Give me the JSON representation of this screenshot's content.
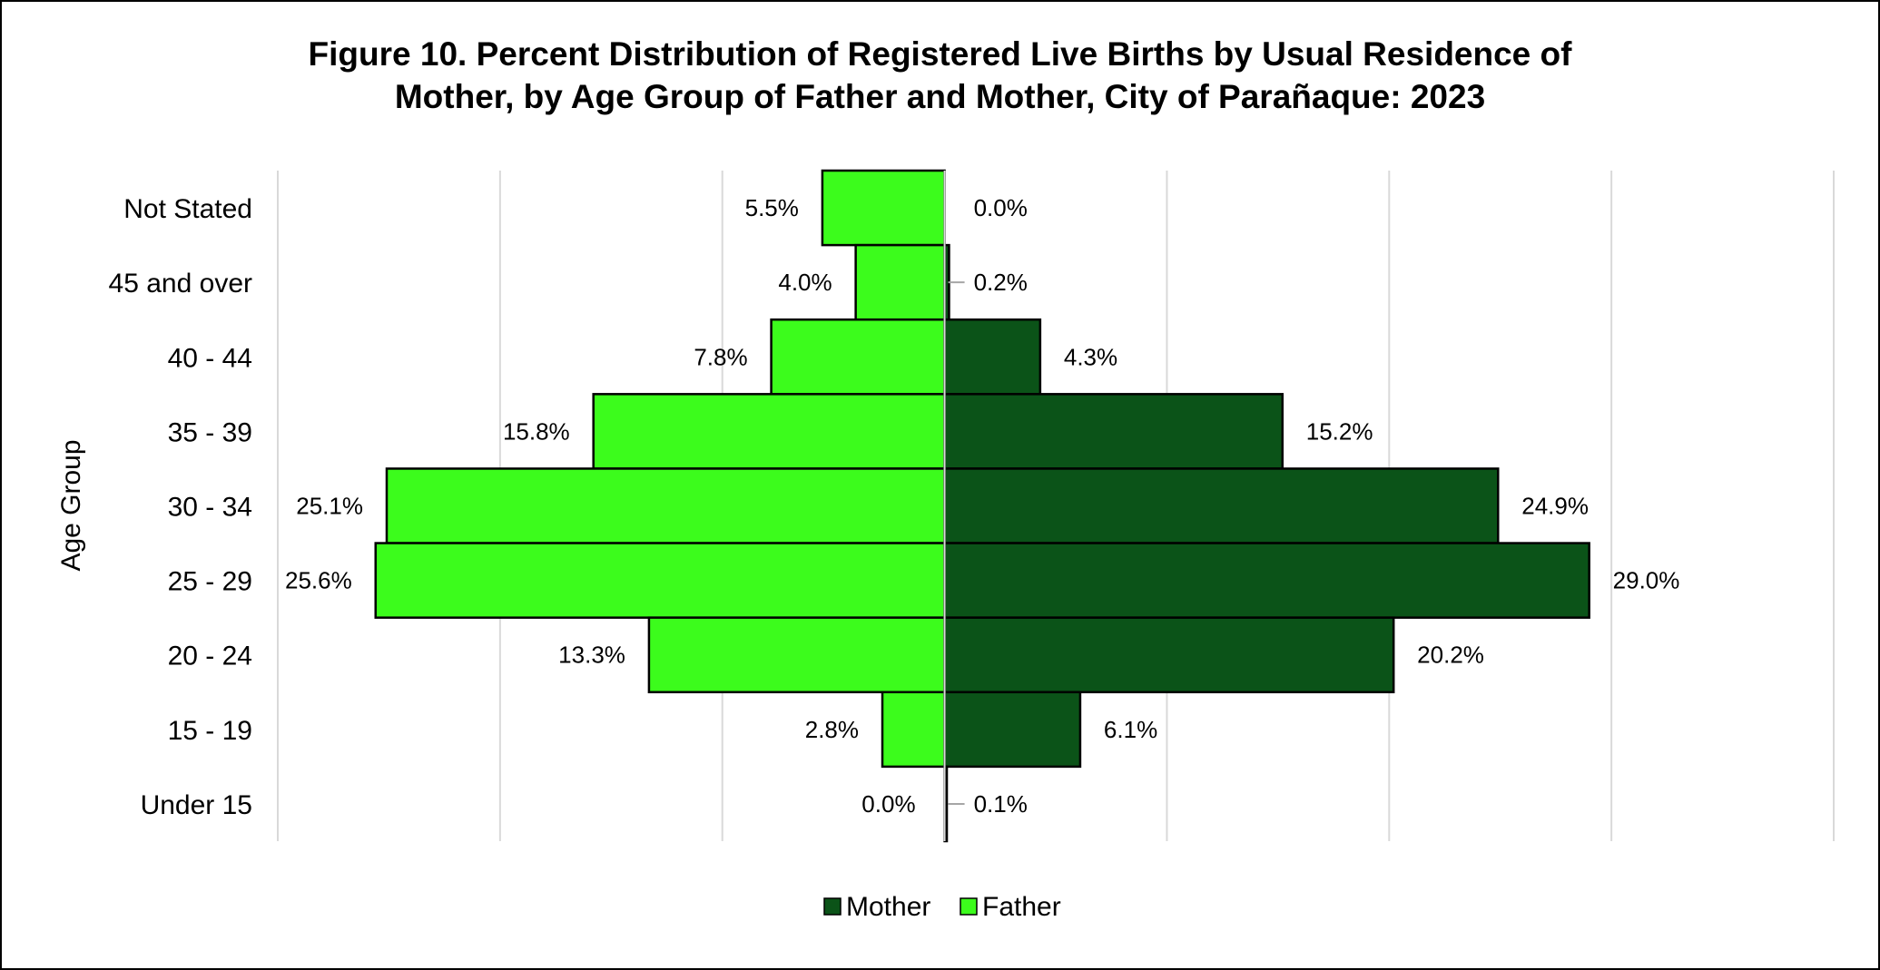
{
  "chart_data": {
    "type": "bar",
    "orientation": "horizontal-population-pyramid",
    "title": "Figure 10. Percent Distribution of Registered Live Births by Usual Residence of Mother, by Age Group of Father and Mother, City of Parañaque: 2023",
    "title_lines": [
      "Figure 10. Percent Distribution of Registered Live Births by Usual Residence of",
      "Mother, by Age Group of Father and Mother, City of Parañaque: 2023"
    ],
    "ylabel": "Age Group",
    "categories": [
      "Not Stated",
      "45 and over",
      "40 - 44",
      "35 - 39",
      "30 - 34",
      "25 - 29",
      "20 - 24",
      "15 - 19",
      "Under 15"
    ],
    "series": [
      {
        "name": "Mother",
        "side": "right",
        "color": "#0b5318",
        "values": [
          0.0,
          0.2,
          4.3,
          15.2,
          24.9,
          29.0,
          20.2,
          6.1,
          0.1
        ],
        "labels": [
          "0.0%",
          "0.2%",
          "4.3%",
          "15.2%",
          "24.9%",
          "29.0%",
          "20.2%",
          "6.1%",
          "0.1%"
        ]
      },
      {
        "name": "Father",
        "side": "left",
        "color": "#3cfc1c",
        "values": [
          5.5,
          4.0,
          7.8,
          15.8,
          25.1,
          25.6,
          13.3,
          2.8,
          0.0
        ],
        "labels": [
          "5.5%",
          "4.0%",
          "7.8%",
          "15.8%",
          "25.1%",
          "25.6%",
          "13.3%",
          "2.8%",
          "0.0%"
        ]
      }
    ],
    "xlim": [
      -30,
      40
    ],
    "grid": true,
    "legend_position": "bottom"
  }
}
